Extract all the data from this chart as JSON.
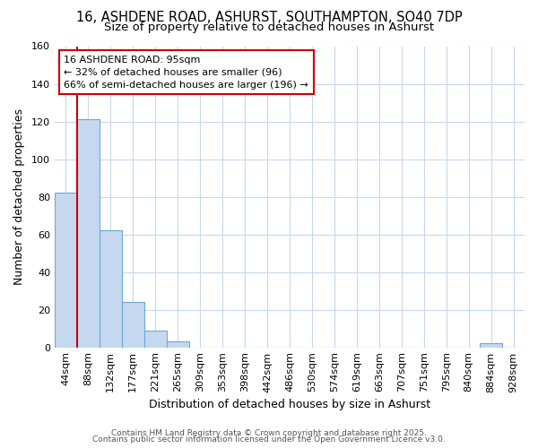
{
  "title1": "16, ASHDENE ROAD, ASHURST, SOUTHAMPTON, SO40 7DP",
  "title2": "Size of property relative to detached houses in Ashurst",
  "xlabel": "Distribution of detached houses by size in Ashurst",
  "ylabel": "Number of detached properties",
  "categories": [
    "44sqm",
    "88sqm",
    "132sqm",
    "177sqm",
    "221sqm",
    "265sqm",
    "309sqm",
    "353sqm",
    "398sqm",
    "442sqm",
    "486sqm",
    "530sqm",
    "574sqm",
    "619sqm",
    "663sqm",
    "707sqm",
    "751sqm",
    "795sqm",
    "840sqm",
    "884sqm",
    "928sqm"
  ],
  "values": [
    82,
    121,
    62,
    24,
    9,
    3,
    0,
    0,
    0,
    0,
    0,
    0,
    0,
    0,
    0,
    0,
    0,
    0,
    0,
    2,
    0
  ],
  "bar_color": "#c5d8f0",
  "bar_edge_color": "#6aaad4",
  "subject_line_color": "#cc0000",
  "annotation_text": "16 ASHDENE ROAD: 95sqm\n← 32% of detached houses are smaller (96)\n66% of semi-detached houses are larger (196) →",
  "annotation_box_edge_color": "#cc0000",
  "ylim": [
    0,
    160
  ],
  "yticks": [
    0,
    20,
    40,
    60,
    80,
    100,
    120,
    140,
    160
  ],
  "footer1": "Contains HM Land Registry data © Crown copyright and database right 2025.",
  "footer2": "Contains public sector information licensed under the Open Government Licence v3.0.",
  "background_color": "#ffffff",
  "plot_bg_color": "#ffffff",
  "grid_color": "#c8d8ee",
  "title_fontsize": 10.5,
  "subtitle_fontsize": 9.5,
  "axis_label_fontsize": 9,
  "tick_fontsize": 8,
  "footer_fontsize": 6.5
}
